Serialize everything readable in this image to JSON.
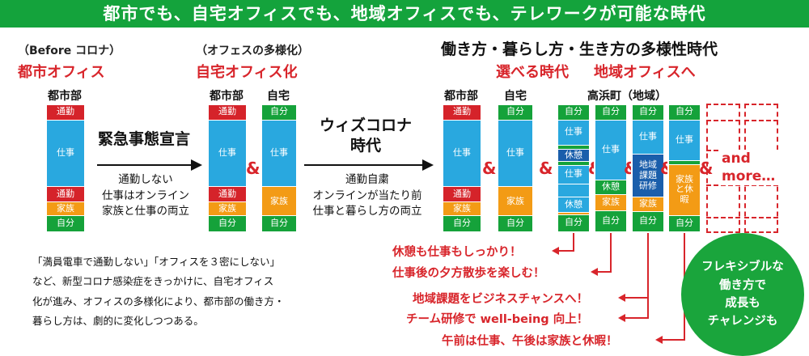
{
  "banner": "都市でも、自宅オフィスでも、地域オフィスでも、テレワークが可能な時代",
  "phase1": {
    "note": "（Before コロナ）",
    "title": "都市オフィス"
  },
  "phase2": {
    "note": "（オフェスの多様化）",
    "title": "自宅オフィス化"
  },
  "phase3": {
    "title": "働き方・暮らし方・生き方の多様性時代",
    "sub1": "選べる時代",
    "sub2": "地域オフィスへ"
  },
  "columns": {
    "city1": "都市部",
    "city2": "都市部",
    "home2": "自宅",
    "city3": "都市部",
    "home3": "自宅",
    "region3": "高浜町（地域）"
  },
  "segments": {
    "commute": "通勤",
    "work": "仕事",
    "family": "家族",
    "self": "自分",
    "rest": "休憩",
    "region_task": "地域課題研修",
    "family_rest": "家族と休暇"
  },
  "transitions": {
    "t1_label": "緊急事態宣言",
    "t1_desc": [
      "通勤しない",
      "仕事はオンライン",
      "家族と仕事の両立"
    ],
    "t2_label": [
      "ウィズコロナ",
      "時代"
    ],
    "t2_desc": [
      "通勤自粛",
      "オンラインが当たり前",
      "仕事と暮らし方の両立"
    ]
  },
  "amp": "&",
  "more": [
    "and",
    "more…"
  ],
  "body_text": [
    "「満員電車で通勤しない」「オフィスを３密にしない」",
    "など、新型コロナ感染症をきっかけに、自宅オフィス",
    "化が進み、オフィスの多様化により、都市部の働き方・",
    "暮らし方は、劇的に変化しつつある。"
  ],
  "callouts": [
    "休憩も仕事もしっかり！",
    "仕事後の夕方散歩を楽しむ！",
    "地域課題をビジネスチャンスへ！",
    "チーム研修で well-being 向上！",
    "午前は仕事、午後は家族と休暇！"
  ],
  "circle": [
    "フレキシブルな",
    "働き方で",
    "成長も",
    "チャレンジも"
  ],
  "colors": {
    "green": "#15a23a",
    "red": "#d5232a",
    "blue": "#29a8df",
    "orange": "#f39b15",
    "navy": "#1a5eab"
  }
}
